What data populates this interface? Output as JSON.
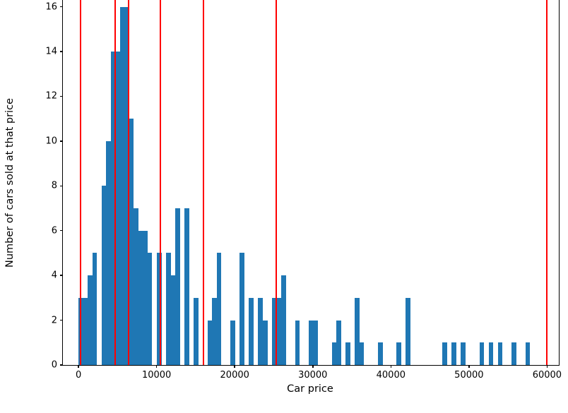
{
  "chart_data": {
    "type": "bar",
    "subtype": "histogram-with-vlines",
    "title": "",
    "xlabel": "Car price",
    "ylabel": "Number of cars sold at that price",
    "xlim": [
      -2000,
      61500
    ],
    "ylim": [
      0,
      16.3
    ],
    "xticks": [
      0,
      10000,
      20000,
      30000,
      40000,
      50000,
      60000
    ],
    "yticks": [
      0,
      2,
      4,
      6,
      8,
      10,
      12,
      14,
      16
    ],
    "grid": false,
    "legend_position": "none",
    "bar_color": "#1f77b4",
    "vline_color": "#ff0000",
    "bin_width": 590,
    "bars": [
      {
        "x": 0,
        "h": 3
      },
      {
        "x": 590,
        "h": 3
      },
      {
        "x": 1180,
        "h": 4
      },
      {
        "x": 1770,
        "h": 5
      },
      {
        "x": 2950,
        "h": 8
      },
      {
        "x": 3540,
        "h": 10
      },
      {
        "x": 4130,
        "h": 14
      },
      {
        "x": 4720,
        "h": 14
      },
      {
        "x": 5310,
        "h": 16
      },
      {
        "x": 5900,
        "h": 16
      },
      {
        "x": 6490,
        "h": 11
      },
      {
        "x": 7080,
        "h": 7
      },
      {
        "x": 7670,
        "h": 6
      },
      {
        "x": 8260,
        "h": 6
      },
      {
        "x": 8850,
        "h": 5
      },
      {
        "x": 10030,
        "h": 5
      },
      {
        "x": 11210,
        "h": 5
      },
      {
        "x": 11800,
        "h": 4
      },
      {
        "x": 12390,
        "h": 7
      },
      {
        "x": 13570,
        "h": 7
      },
      {
        "x": 14750,
        "h": 3
      },
      {
        "x": 16520,
        "h": 2
      },
      {
        "x": 17110,
        "h": 3
      },
      {
        "x": 17700,
        "h": 5
      },
      {
        "x": 19470,
        "h": 2
      },
      {
        "x": 20650,
        "h": 5
      },
      {
        "x": 21830,
        "h": 3
      },
      {
        "x": 23010,
        "h": 3
      },
      {
        "x": 23600,
        "h": 2
      },
      {
        "x": 24780,
        "h": 3
      },
      {
        "x": 25370,
        "h": 3
      },
      {
        "x": 25960,
        "h": 4
      },
      {
        "x": 27730,
        "h": 2
      },
      {
        "x": 29500,
        "h": 2
      },
      {
        "x": 30090,
        "h": 2
      },
      {
        "x": 32450,
        "h": 1
      },
      {
        "x": 33040,
        "h": 2
      },
      {
        "x": 34220,
        "h": 1
      },
      {
        "x": 35400,
        "h": 3
      },
      {
        "x": 35990,
        "h": 1
      },
      {
        "x": 38350,
        "h": 1
      },
      {
        "x": 40710,
        "h": 1
      },
      {
        "x": 41890,
        "h": 3
      },
      {
        "x": 46610,
        "h": 1
      },
      {
        "x": 47790,
        "h": 1
      },
      {
        "x": 48970,
        "h": 1
      },
      {
        "x": 51330,
        "h": 1
      },
      {
        "x": 52510,
        "h": 1
      },
      {
        "x": 53690,
        "h": 1
      },
      {
        "x": 55460,
        "h": 1
      },
      {
        "x": 57230,
        "h": 1
      }
    ],
    "vlines": [
      250,
      4700,
      6450,
      10500,
      16000,
      25300,
      60000
    ]
  }
}
